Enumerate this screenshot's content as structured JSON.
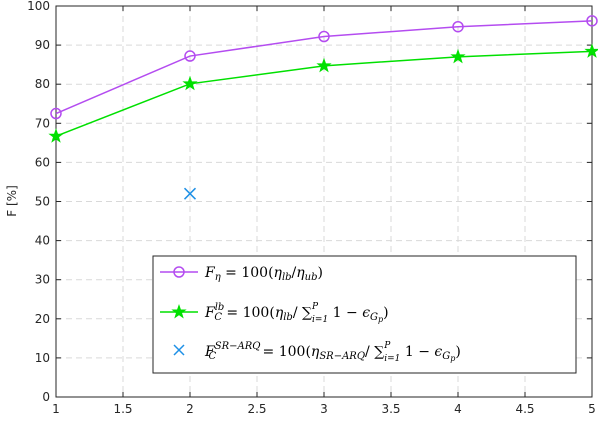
{
  "chart_data": {
    "type": "line",
    "xlabel": "",
    "ylabel": "F [%]",
    "xlim": [
      1,
      5
    ],
    "ylim": [
      0,
      100
    ],
    "xticks": [
      1,
      1.5,
      2,
      2.5,
      3,
      3.5,
      4,
      4.5,
      5
    ],
    "xtick_labels": [
      "1",
      "1.5",
      "2",
      "2.5",
      "3",
      "3.5",
      "4",
      "4.5",
      "5"
    ],
    "yticks": [
      0,
      10,
      20,
      30,
      40,
      50,
      60,
      70,
      80,
      90,
      100
    ],
    "ytick_labels": [
      "0",
      "10",
      "20",
      "30",
      "40",
      "50",
      "60",
      "70",
      "80",
      "90",
      "100"
    ],
    "grid": true,
    "legend_position": "bottom-center",
    "series": [
      {
        "name": "F_η = 100(η_lb/η_ub)",
        "x": [
          1,
          2,
          3,
          4,
          5
        ],
        "values": [
          72.5,
          87.2,
          92.2,
          94.7,
          96.2
        ],
        "color": "#b44cf0",
        "marker": "circle",
        "line": true
      },
      {
        "name": "F_C^lb = 100(η_lb/∑_{i=1}^P 1 − ε_{G_p})",
        "x": [
          1,
          2,
          3,
          4,
          5
        ],
        "values": [
          66.7,
          80.1,
          84.7,
          87.0,
          88.4
        ],
        "color": "#00e000",
        "marker": "star",
        "line": true
      },
      {
        "name": "F_C^{SR−ARQ} = 100(η_{SR−ARQ}/∑_{i=1}^P 1 − ε_{G_p})",
        "x": [
          2
        ],
        "values": [
          52.0
        ],
        "color": "#1e90e6",
        "marker": "x",
        "line": false
      }
    ]
  }
}
